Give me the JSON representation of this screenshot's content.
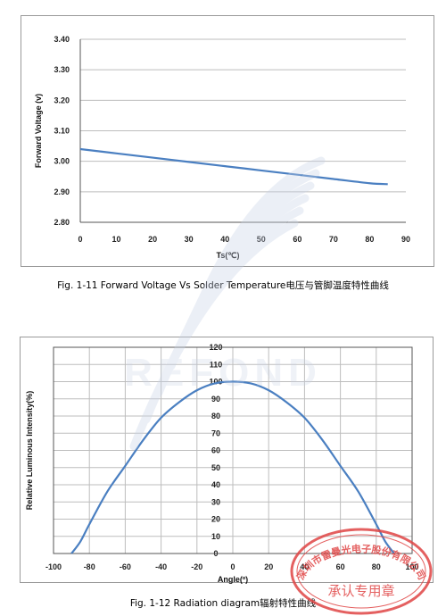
{
  "captions": {
    "fig11": "Fig. 1-11 Forward Voltage Vs Solder Temperature电压与管脚温度特性曲线",
    "fig12": "Fig. 1-12 Radiation diagram辐射特性曲线"
  },
  "watermark": {
    "text": "REFOND"
  },
  "stamp": {
    "ring_text": "深圳市雷曼光电子股份有限公司",
    "bottom_text": "承认专用章"
  },
  "colors": {
    "series": "#4a7fc1",
    "grid": "#bdbdbd",
    "stamp": "#e04545",
    "watermark": "#c8d2e6"
  },
  "chart_data": [
    {
      "type": "line",
      "title": "",
      "xlabel": "Ts(℃)",
      "ylabel": "Forward Voltage (v)",
      "xlim": [
        0,
        90
      ],
      "ylim": [
        2.8,
        3.4
      ],
      "xticks": [
        "0",
        "10",
        "20",
        "30",
        "40",
        "50",
        "60",
        "70",
        "80",
        "90"
      ],
      "yticks": [
        "2.80",
        "2.90",
        "3.00",
        "3.10",
        "3.20",
        "3.30",
        "3.40"
      ],
      "grid": "horizontal",
      "series": [
        {
          "x": [
            0,
            10,
            20,
            30,
            40,
            50,
            60,
            70,
            80,
            85
          ],
          "y": [
            3.04,
            3.026,
            3.012,
            2.998,
            2.984,
            2.97,
            2.956,
            2.942,
            2.928,
            2.925
          ]
        }
      ]
    },
    {
      "type": "line",
      "title": "",
      "xlabel": "Angle(º)",
      "ylabel": "Relative Luminous Intensity(%)",
      "xlim": [
        -100,
        100
      ],
      "ylim": [
        0,
        120
      ],
      "xticks": [
        "-100",
        "-80",
        "-60",
        "-40",
        "-20",
        "0",
        "20",
        "40",
        "60",
        "80",
        "100"
      ],
      "yticks": [
        "0",
        "10",
        "20",
        "30",
        "40",
        "50",
        "60",
        "70",
        "80",
        "90",
        "100",
        "110",
        "120"
      ],
      "grid": "both",
      "series": [
        {
          "x": [
            -90,
            -85,
            -80,
            -70,
            -60,
            -50,
            -40,
            -30,
            -20,
            -10,
            0,
            10,
            20,
            30,
            40,
            50,
            60,
            70,
            80,
            85,
            90
          ],
          "y": [
            0,
            7,
            17,
            36,
            51,
            66,
            79,
            88,
            95,
            99,
            100,
            99,
            95,
            88,
            79,
            66,
            51,
            36,
            17,
            7,
            0
          ]
        }
      ]
    }
  ]
}
